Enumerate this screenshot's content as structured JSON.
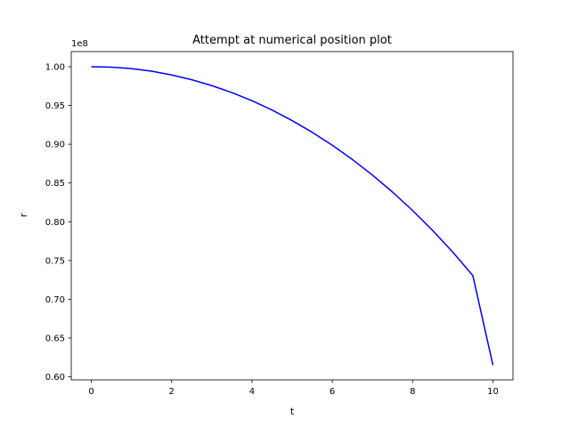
{
  "chart_data": {
    "type": "line",
    "title": "Attempt at numerical position plot",
    "xlabel": "t",
    "ylabel": "r",
    "offset_text": "1e8",
    "xlim": [
      -0.5,
      10.5
    ],
    "ylim": [
      0.596,
      1.0195
    ],
    "y_scale_factor": 100000000,
    "x_ticks": [
      0,
      2,
      4,
      6,
      8,
      10
    ],
    "x_tick_labels": [
      "0",
      "2",
      "4",
      "6",
      "8",
      "10"
    ],
    "y_ticks": [
      0.6,
      0.65,
      0.7,
      0.75,
      0.8,
      0.85,
      0.9,
      0.95,
      1.0
    ],
    "y_tick_labels": [
      "0.60",
      "0.65",
      "0.70",
      "0.75",
      "0.80",
      "0.85",
      "0.90",
      "0.95",
      "1.00"
    ],
    "grid": false,
    "series": [
      {
        "color": "#0000ff",
        "x": [
          0,
          0.5,
          1,
          1.5,
          2,
          2.5,
          3,
          3.5,
          4,
          4.5,
          5,
          5.5,
          6,
          6.5,
          7,
          7.5,
          8,
          8.5,
          9,
          9.5,
          10
        ],
        "y": [
          1.0,
          0.9994,
          0.9975,
          0.9942,
          0.9894,
          0.9832,
          0.9756,
          0.9666,
          0.9561,
          0.9441,
          0.9305,
          0.9154,
          0.8987,
          0.8803,
          0.8602,
          0.8383,
          0.8145,
          0.7887,
          0.7608,
          0.7306,
          0.615
        ]
      }
    ]
  }
}
